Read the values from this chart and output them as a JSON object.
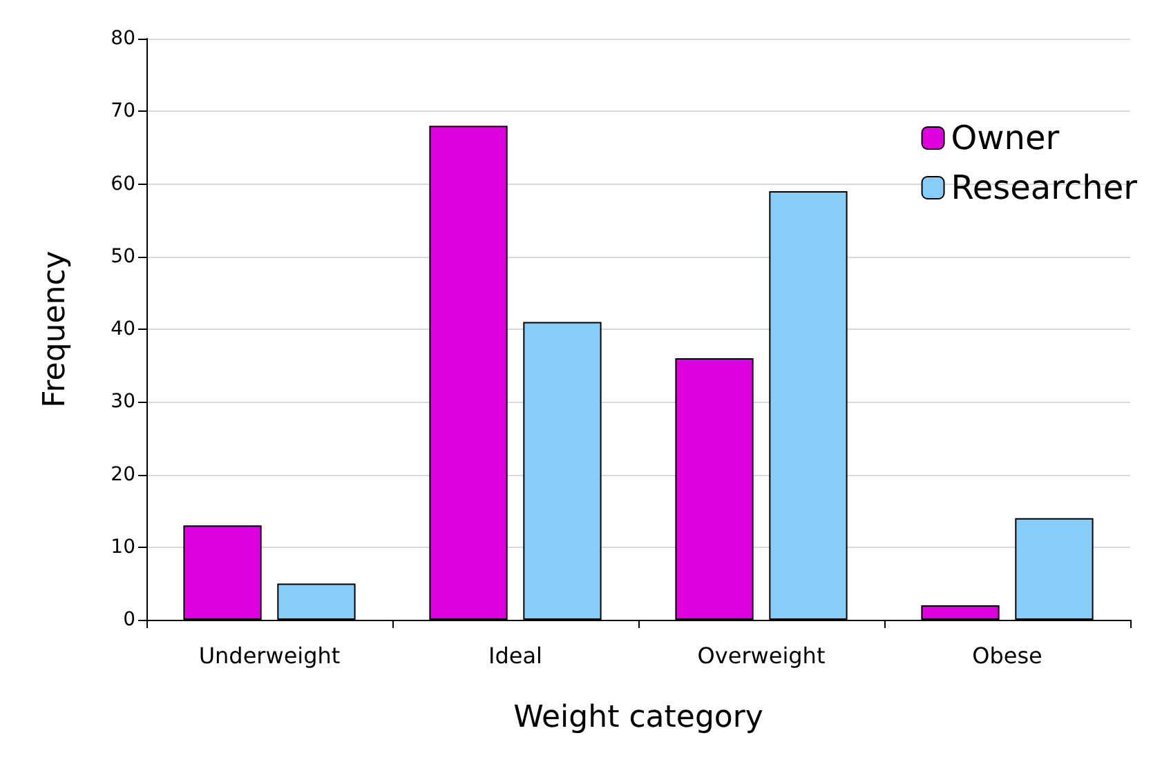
{
  "chart_data": {
    "type": "bar",
    "xlabel": "Weight category",
    "ylabel": "Frequency",
    "categories": [
      "Underweight",
      "Ideal",
      "Overweight",
      "Obese"
    ],
    "series": [
      {
        "name": "Owner",
        "color": "#dd00dd",
        "values": [
          13,
          68,
          36,
          2
        ]
      },
      {
        "name": "Researcher",
        "color": "#88ccf8",
        "values": [
          5,
          41,
          59,
          14
        ]
      }
    ],
    "ylim": [
      0,
      80
    ],
    "yticks": [
      0,
      10,
      20,
      30,
      40,
      50,
      60,
      70,
      80
    ],
    "grid": "y",
    "legend": "top right"
  }
}
